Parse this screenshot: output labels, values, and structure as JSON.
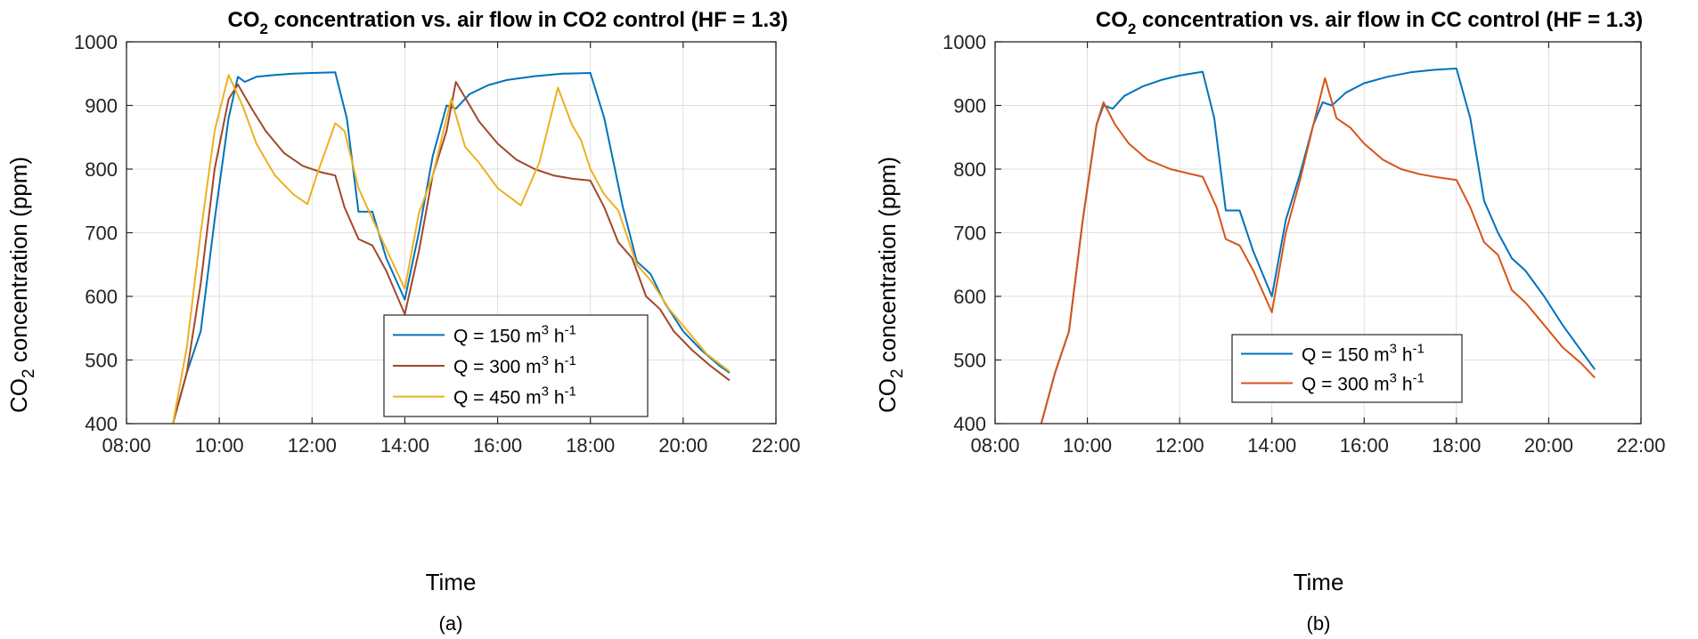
{
  "chart_data": [
    {
      "type": "line",
      "title_main": "CO",
      "title_sub": "2",
      "title_rest": " concentration vs. air flow in CO2 control (HF = 1.3)",
      "xlabel": "Time",
      "ylabel_main": "CO",
      "ylabel_sub": "2",
      "ylabel_rest": " concentration (ppm)",
      "caption": "(a)",
      "xlim": [
        8,
        22
      ],
      "ylim": [
        400,
        1000
      ],
      "xticks": [
        {
          "value": 8,
          "label": "08:00"
        },
        {
          "value": 10,
          "label": "10:00"
        },
        {
          "value": 12,
          "label": "12:00"
        },
        {
          "value": 14,
          "label": "14:00"
        },
        {
          "value": 16,
          "label": "16:00"
        },
        {
          "value": 18,
          "label": "18:00"
        },
        {
          "value": 20,
          "label": "20:00"
        },
        {
          "value": 22,
          "label": "22:00"
        }
      ],
      "yticks": [
        400,
        500,
        600,
        700,
        800,
        900,
        1000
      ],
      "grid": true,
      "legend_position": "bottom-right",
      "series": [
        {
          "name": "Q = 150 m3 h-1",
          "legend_prefix": "Q = 150 m",
          "legend_sup1": "3",
          "legend_mid": " h",
          "legend_sup2": "-1",
          "color": "#0072BD",
          "points": [
            [
              9,
              400
            ],
            [
              9.3,
              480
            ],
            [
              9.6,
              545
            ],
            [
              9.9,
              720
            ],
            [
              10.2,
              880
            ],
            [
              10.4,
              945
            ],
            [
              10.55,
              937
            ],
            [
              10.8,
              945
            ],
            [
              11.2,
              948
            ],
            [
              11.6,
              950
            ],
            [
              12,
              951
            ],
            [
              12.5,
              952
            ],
            [
              12.75,
              880
            ],
            [
              13.0,
              733
            ],
            [
              13.3,
              733
            ],
            [
              13.6,
              660
            ],
            [
              14,
              595
            ],
            [
              14.3,
              700
            ],
            [
              14.6,
              820
            ],
            [
              14.9,
              900
            ],
            [
              15.1,
              895
            ],
            [
              15.4,
              918
            ],
            [
              15.8,
              932
            ],
            [
              16.2,
              940
            ],
            [
              16.8,
              946
            ],
            [
              17.4,
              950
            ],
            [
              18,
              951
            ],
            [
              18.3,
              880
            ],
            [
              18.7,
              740
            ],
            [
              19.0,
              655
            ],
            [
              19.3,
              635
            ],
            [
              19.6,
              590
            ],
            [
              20,
              545
            ],
            [
              20.4,
              515
            ],
            [
              20.8,
              490
            ],
            [
              21,
              480
            ]
          ]
        },
        {
          "name": "Q = 300 m3 h-1",
          "legend_prefix": "Q = 300 m",
          "legend_sup1": "3",
          "legend_mid": " h",
          "legend_sup2": "-1",
          "color": "#A2472A",
          "points": [
            [
              9,
              400
            ],
            [
              9.3,
              480
            ],
            [
              9.6,
              620
            ],
            [
              9.9,
              800
            ],
            [
              10.2,
              910
            ],
            [
              10.4,
              933
            ],
            [
              10.7,
              895
            ],
            [
              11,
              860
            ],
            [
              11.4,
              825
            ],
            [
              11.8,
              805
            ],
            [
              12.2,
              795
            ],
            [
              12.5,
              790
            ],
            [
              12.7,
              740
            ],
            [
              13.0,
              690
            ],
            [
              13.3,
              680
            ],
            [
              13.6,
              640
            ],
            [
              14,
              572
            ],
            [
              14.3,
              670
            ],
            [
              14.6,
              790
            ],
            [
              14.9,
              860
            ],
            [
              15.1,
              937
            ],
            [
              15.4,
              900
            ],
            [
              15.6,
              875
            ],
            [
              16.0,
              840
            ],
            [
              16.4,
              815
            ],
            [
              16.8,
              800
            ],
            [
              17.2,
              790
            ],
            [
              17.6,
              785
            ],
            [
              18,
              782
            ],
            [
              18.3,
              740
            ],
            [
              18.6,
              685
            ],
            [
              18.9,
              660
            ],
            [
              19.2,
              600
            ],
            [
              19.5,
              580
            ],
            [
              19.8,
              545
            ],
            [
              20.2,
              515
            ],
            [
              20.6,
              490
            ],
            [
              21,
              468
            ]
          ]
        },
        {
          "name": "Q = 450 m3 h-1",
          "legend_prefix": "Q = 450 m",
          "legend_sup1": "3",
          "legend_mid": " h",
          "legend_sup2": "-1",
          "color": "#EDB120",
          "points": [
            [
              9,
              400
            ],
            [
              9.3,
              520
            ],
            [
              9.6,
              700
            ],
            [
              9.9,
              860
            ],
            [
              10.2,
              948
            ],
            [
              10.5,
              900
            ],
            [
              10.8,
              840
            ],
            [
              11.2,
              790
            ],
            [
              11.6,
              760
            ],
            [
              11.9,
              745
            ],
            [
              12.1,
              790
            ],
            [
              12.5,
              872
            ],
            [
              12.7,
              860
            ],
            [
              13.0,
              770
            ],
            [
              13.5,
              690
            ],
            [
              14,
              612
            ],
            [
              14.3,
              730
            ],
            [
              14.6,
              790
            ],
            [
              14.9,
              880
            ],
            [
              15.0,
              910
            ],
            [
              15.3,
              835
            ],
            [
              15.6,
              810
            ],
            [
              16.0,
              770
            ],
            [
              16.5,
              743
            ],
            [
              16.9,
              810
            ],
            [
              17.3,
              928
            ],
            [
              17.6,
              870
            ],
            [
              17.8,
              845
            ],
            [
              18.0,
              800
            ],
            [
              18.3,
              760
            ],
            [
              18.6,
              735
            ],
            [
              19.0,
              650
            ],
            [
              19.3,
              625
            ],
            [
              19.7,
              580
            ],
            [
              20.1,
              545
            ],
            [
              20.5,
              510
            ],
            [
              21,
              482
            ]
          ]
        }
      ]
    },
    {
      "type": "line",
      "title_main": "CO",
      "title_sub": "2",
      "title_rest": " concentration vs. air flow in CC control (HF = 1.3)",
      "xlabel": "Time",
      "ylabel_main": "CO",
      "ylabel_sub": "2",
      "ylabel_rest": " concentration (ppm)",
      "caption": "(b)",
      "xlim": [
        8,
        22
      ],
      "ylim": [
        400,
        1000
      ],
      "xticks": [
        {
          "value": 8,
          "label": "08:00"
        },
        {
          "value": 10,
          "label": "10:00"
        },
        {
          "value": 12,
          "label": "12:00"
        },
        {
          "value": 14,
          "label": "14:00"
        },
        {
          "value": 16,
          "label": "16:00"
        },
        {
          "value": 18,
          "label": "18:00"
        },
        {
          "value": 20,
          "label": "20:00"
        },
        {
          "value": 22,
          "label": "22:00"
        }
      ],
      "yticks": [
        400,
        500,
        600,
        700,
        800,
        900,
        1000
      ],
      "grid": true,
      "legend_position": "bottom-right",
      "series": [
        {
          "name": "Q = 150 m3 h-1",
          "legend_prefix": "Q = 150 m",
          "legend_sup1": "3",
          "legend_mid": " h",
          "legend_sup2": "-1",
          "color": "#0072BD",
          "points": [
            [
              9,
              400
            ],
            [
              9.3,
              480
            ],
            [
              9.6,
              545
            ],
            [
              9.9,
              720
            ],
            [
              10.2,
              870
            ],
            [
              10.35,
              900
            ],
            [
              10.55,
              895
            ],
            [
              10.8,
              915
            ],
            [
              11.2,
              930
            ],
            [
              11.6,
              940
            ],
            [
              12,
              947
            ],
            [
              12.5,
              953
            ],
            [
              12.75,
              880
            ],
            [
              13.0,
              735
            ],
            [
              13.3,
              735
            ],
            [
              13.6,
              670
            ],
            [
              14,
              600
            ],
            [
              14.3,
              720
            ],
            [
              14.6,
              790
            ],
            [
              14.9,
              870
            ],
            [
              15.1,
              905
            ],
            [
              15.3,
              900
            ],
            [
              15.6,
              920
            ],
            [
              16.0,
              935
            ],
            [
              16.5,
              945
            ],
            [
              17.0,
              952
            ],
            [
              17.5,
              956
            ],
            [
              18,
              958
            ],
            [
              18.3,
              880
            ],
            [
              18.6,
              750
            ],
            [
              18.9,
              700
            ],
            [
              19.2,
              660
            ],
            [
              19.5,
              640
            ],
            [
              19.9,
              600
            ],
            [
              20.3,
              555
            ],
            [
              20.7,
              515
            ],
            [
              21,
              485
            ]
          ]
        },
        {
          "name": "Q = 300 m3 h-1",
          "legend_prefix": "Q = 300 m",
          "legend_sup1": "3",
          "legend_mid": " h",
          "legend_sup2": "-1",
          "color": "#D95319",
          "points": [
            [
              9,
              400
            ],
            [
              9.3,
              480
            ],
            [
              9.6,
              545
            ],
            [
              9.9,
              720
            ],
            [
              10.2,
              870
            ],
            [
              10.35,
              905
            ],
            [
              10.6,
              870
            ],
            [
              10.9,
              840
            ],
            [
              11.3,
              815
            ],
            [
              11.8,
              800
            ],
            [
              12.2,
              793
            ],
            [
              12.5,
              788
            ],
            [
              12.8,
              740
            ],
            [
              13.0,
              690
            ],
            [
              13.3,
              680
            ],
            [
              13.6,
              640
            ],
            [
              14,
              575
            ],
            [
              14.3,
              700
            ],
            [
              14.6,
              780
            ],
            [
              14.9,
              870
            ],
            [
              15.15,
              943
            ],
            [
              15.4,
              880
            ],
            [
              15.7,
              865
            ],
            [
              16.0,
              840
            ],
            [
              16.4,
              815
            ],
            [
              16.8,
              800
            ],
            [
              17.2,
              792
            ],
            [
              17.6,
              787
            ],
            [
              18,
              783
            ],
            [
              18.3,
              740
            ],
            [
              18.6,
              685
            ],
            [
              18.9,
              665
            ],
            [
              19.2,
              610
            ],
            [
              19.5,
              590
            ],
            [
              19.9,
              555
            ],
            [
              20.3,
              520
            ],
            [
              20.7,
              495
            ],
            [
              21,
              472
            ]
          ]
        }
      ]
    }
  ]
}
